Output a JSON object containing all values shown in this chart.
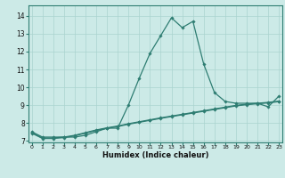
{
  "title": "",
  "xlabel": "Humidex (Indice chaleur)",
  "background_color": "#cceae7",
  "grid_color": "#aad4d0",
  "line_color": "#2e7d72",
  "hours": [
    0,
    1,
    2,
    3,
    4,
    5,
    6,
    7,
    8,
    9,
    10,
    11,
    12,
    13,
    14,
    15,
    16,
    17,
    18,
    19,
    20,
    21,
    22,
    23
  ],
  "line1": [
    7.5,
    7.2,
    7.2,
    7.2,
    7.2,
    7.3,
    7.5,
    7.7,
    7.7,
    9.0,
    10.5,
    11.9,
    12.9,
    13.9,
    13.35,
    13.7,
    11.3,
    9.7,
    9.2,
    9.1,
    9.1,
    9.1,
    8.9,
    9.5
  ],
  "line2": [
    7.45,
    7.15,
    7.15,
    7.2,
    7.3,
    7.45,
    7.6,
    7.72,
    7.82,
    7.95,
    8.06,
    8.17,
    8.28,
    8.38,
    8.48,
    8.58,
    8.68,
    8.78,
    8.88,
    8.98,
    9.05,
    9.1,
    9.15,
    9.22
  ],
  "line3": [
    7.42,
    7.12,
    7.12,
    7.17,
    7.27,
    7.42,
    7.57,
    7.69,
    7.79,
    7.92,
    8.03,
    8.14,
    8.25,
    8.35,
    8.45,
    8.55,
    8.65,
    8.75,
    8.85,
    8.95,
    9.02,
    9.07,
    9.12,
    9.19
  ],
  "ylim": [
    6.9,
    14.6
  ],
  "yticks": [
    7,
    8,
    9,
    10,
    11,
    12,
    13,
    14
  ],
  "xticks": [
    0,
    1,
    2,
    3,
    4,
    5,
    6,
    7,
    8,
    9,
    10,
    11,
    12,
    13,
    14,
    15,
    16,
    17,
    18,
    19,
    20,
    21,
    22,
    23
  ]
}
